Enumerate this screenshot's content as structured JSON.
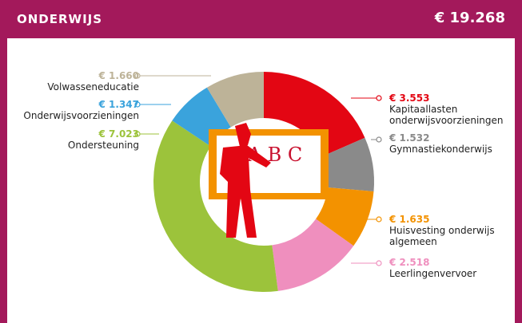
{
  "chart_data": {
    "type": "donut",
    "title": "ONDERWIJS",
    "total": 19268,
    "total_label": "€ 19.268",
    "categories": [
      "Kapitaallasten onderwijsvoorzieningen",
      "Gymnastiekonderwijs",
      "Huisvesting onderwijs algemeen",
      "Leerlingenvervoer",
      "Ondersteuning",
      "Onderwijsvoorzieningen",
      "Volwasseneducatie"
    ],
    "values": [
      3553,
      1532,
      1635,
      2518,
      7023,
      1347,
      1660
    ],
    "value_labels": [
      "€ 3.553",
      "€ 1.532",
      "€ 1.635",
      "€ 2.518",
      "€ 7.023",
      "€ 1.347",
      "€ 1.660"
    ],
    "colors": [
      "#e30613",
      "#8a8a8a",
      "#f39200",
      "#ef8fbe",
      "#9cc33b",
      "#3aa3dc",
      "#bdb398"
    ]
  }
}
